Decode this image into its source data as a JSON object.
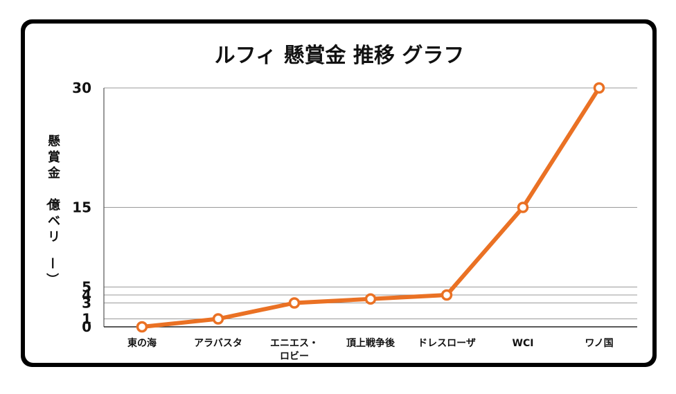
{
  "chart_data": {
    "type": "line",
    "title": "ルフィ 懸賞金 推移 グラフ",
    "ylabel": "懸賞金（億ベリー）",
    "xlabel": "",
    "categories": [
      "東の海",
      "アラバスタ",
      "エニエス・ロビー",
      "頂上戦争後",
      "ドレスローザ",
      "WCI",
      "ワノ国"
    ],
    "values": [
      0,
      1,
      3,
      3.5,
      4,
      15,
      30
    ],
    "yticks": [
      0,
      1,
      3,
      4,
      5,
      15,
      30
    ],
    "ylim": [
      0,
      30
    ],
    "grid": true,
    "line_color": "#ea7124"
  }
}
